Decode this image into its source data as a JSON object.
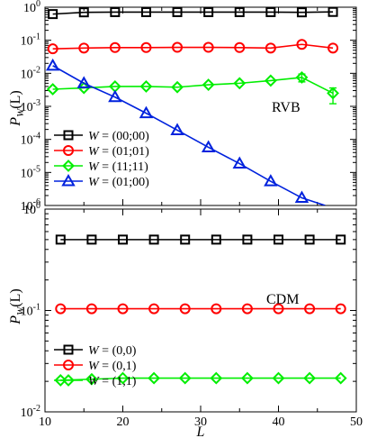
{
  "chart_data": [
    {
      "type": "line",
      "yscale": "log",
      "xlim": [
        10,
        50
      ],
      "ylim_exp": [
        -6,
        0
      ],
      "ylabel": "P_W(L)",
      "annotation": "RVB",
      "legend_position": "lower-left",
      "series": [
        {
          "name": "W = (00;00)",
          "color": "#000000",
          "marker": "square",
          "x": [
            11,
            15,
            19,
            23,
            27,
            31,
            35,
            39,
            43,
            47
          ],
          "y": [
            0.62,
            0.7,
            0.71,
            0.71,
            0.71,
            0.71,
            0.71,
            0.71,
            0.7,
            0.72
          ]
        },
        {
          "name": "W = (01;01)",
          "color": "#ff0000",
          "marker": "circle",
          "x": [
            11,
            15,
            19,
            23,
            27,
            31,
            35,
            39,
            43,
            47
          ],
          "y": [
            0.055,
            0.058,
            0.06,
            0.06,
            0.061,
            0.061,
            0.06,
            0.058,
            0.075,
            0.058
          ]
        },
        {
          "name": "W = (11;11)",
          "color": "#00ee00",
          "marker": "diamond",
          "x": [
            11,
            15,
            19,
            23,
            27,
            31,
            35,
            39,
            43,
            47
          ],
          "y": [
            0.0033,
            0.0036,
            0.004,
            0.004,
            0.0038,
            0.0045,
            0.005,
            0.006,
            0.0075,
            0.0025
          ],
          "err_low": [
            null,
            null,
            null,
            null,
            null,
            null,
            null,
            null,
            0.0055,
            0.0012
          ],
          "err_high": [
            null,
            null,
            null,
            null,
            null,
            null,
            null,
            null,
            0.0095,
            0.0036
          ]
        },
        {
          "name": "W = (01;00)",
          "color": "#0022dd",
          "marker": "triangle",
          "x": [
            11,
            15,
            19,
            23,
            27,
            31,
            35,
            39,
            43
          ],
          "y": [
            0.017,
            0.005,
            0.0019,
            0.00062,
            0.00019,
            5.75e-05,
            1.85e-05,
            5.4e-06,
            1.7e-06
          ],
          "line_end": [
            46,
            1e-06
          ]
        }
      ]
    },
    {
      "type": "line",
      "yscale": "log",
      "xlim": [
        10,
        50
      ],
      "ylim_exp": [
        -2,
        0
      ],
      "xlabel": "L",
      "ylabel": "P_W(L)",
      "annotation": "CDM",
      "legend_position": "lower-left",
      "x_ticks": [
        "10",
        "20",
        "30",
        "40",
        "50"
      ],
      "series": [
        {
          "name": "W = (0,0)",
          "color": "#000000",
          "marker": "square",
          "x": [
            12,
            16,
            20,
            24,
            28,
            32,
            36,
            40,
            44,
            48
          ],
          "y": [
            0.5,
            0.5,
            0.5,
            0.5,
            0.5,
            0.5,
            0.5,
            0.5,
            0.5,
            0.5
          ]
        },
        {
          "name": "W = (0,1)",
          "color": "#ff0000",
          "marker": "circle",
          "x": [
            12,
            16,
            20,
            24,
            28,
            32,
            36,
            40,
            44,
            48
          ],
          "y": [
            0.104,
            0.104,
            0.104,
            0.104,
            0.104,
            0.104,
            0.104,
            0.104,
            0.104,
            0.104
          ]
        },
        {
          "name": "W = (1,1)",
          "color": "#00ee00",
          "marker": "diamond",
          "x": [
            12,
            16,
            20,
            24,
            28,
            32,
            36,
            40,
            44,
            48
          ],
          "y": [
            0.0205,
            0.021,
            0.0215,
            0.0215,
            0.0215,
            0.0215,
            0.0215,
            0.0215,
            0.0215,
            0.0215
          ]
        }
      ]
    }
  ]
}
